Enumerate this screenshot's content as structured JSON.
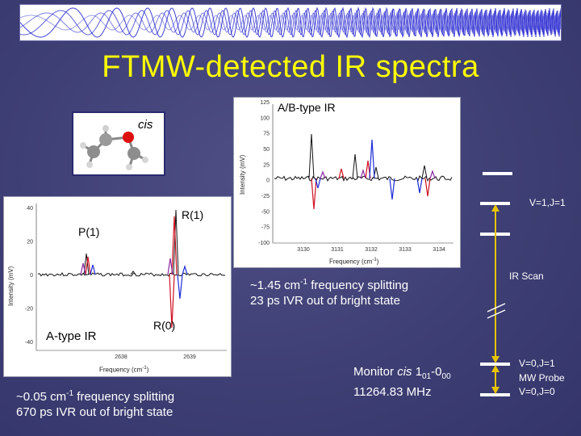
{
  "slide": {
    "title": "FTMW-detected IR spectra"
  },
  "molecule": {
    "label": "cis"
  },
  "ab_spectrum": {
    "label": "A/B-type IR",
    "ylabel": "Intensity (mV)",
    "xlabel": "Frequency (cm",
    "xlabel_sup": "-1",
    "xlabel_end": ")",
    "yticks": [
      "125",
      "100",
      "75",
      "50",
      "25",
      "0",
      "-25",
      "-50",
      "-75",
      "-100"
    ],
    "xticks": [
      "3130",
      "3131",
      "3132",
      "3133",
      "3134"
    ]
  },
  "a_spectrum": {
    "label": "A-type IR",
    "ylabel": "Intensity (mV)",
    "xlabel": "Frequency (cm",
    "xlabel_sup": "-1",
    "xlabel_end": ")",
    "yticks": [
      "40",
      "20",
      "0",
      "-20",
      "-40"
    ],
    "xticks": [
      "2638",
      "2639"
    ],
    "p1": "P(1)",
    "r1": "R(1)",
    "r0": "R(0)"
  },
  "notes": {
    "ab_line1_a": "~1.45 cm",
    "ab_line1_sup": "-1",
    "ab_line1_b": " frequency splitting",
    "ab_line2": "23 ps IVR out of bright state",
    "a_line1_a": "~0.05 cm",
    "a_line1_sup": "-1",
    "a_line1_b": " frequency splitting",
    "a_line2": "670 ps IVR out of bright state",
    "monitor_a": "Monitor ",
    "monitor_cis": "cis",
    "monitor_b": " 1",
    "monitor_sub1": "01",
    "monitor_c": "-0",
    "monitor_sub2": "00",
    "frequency": "11264.83 MHz"
  },
  "energy_levels": {
    "upper": "V=1,J=1",
    "ir_scan": "IR Scan",
    "lower_upper": "V=0,J=1",
    "mw_probe": "MW Probe",
    "ground": "V=0,J=0"
  },
  "colors": {
    "title": "#ffff00",
    "arrow": "#e8c400",
    "trace_black": "#111111",
    "trace_red": "#d01020",
    "trace_blue": "#1c2ad8",
    "trace_purple": "#8a2aa0"
  }
}
